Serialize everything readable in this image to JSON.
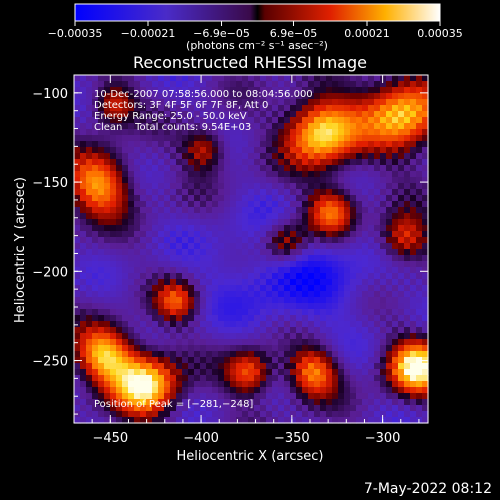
{
  "chart_data": {
    "type": "heatmap",
    "title": "Reconstructed RHESSI Image",
    "xlabel": "Heliocentric X (arcsec)",
    "ylabel": "Heliocentric Y (arcsec)",
    "xlim": [
      -470,
      -275
    ],
    "ylim": [
      -285,
      -90
    ],
    "x_ticks": [
      -450,
      -400,
      -350,
      -300
    ],
    "x_tick_labels": [
      "−450",
      "−400",
      "−350",
      "−300"
    ],
    "y_ticks": [
      -100,
      -150,
      -200,
      -250
    ],
    "y_tick_labels": [
      "−100",
      "−150",
      "−200",
      "−250"
    ],
    "colorbar": {
      "min": -0.00035,
      "max": 0.00035,
      "ticks": [
        -0.00035,
        -0.00021,
        -6.9e-05,
        6.9e-05,
        0.00021,
        0.00035
      ],
      "tick_labels": [
        "−0.00035",
        "−0.00021",
        "−6.9e−05",
        "6.9e−05",
        "0.00021",
        "0.00035"
      ],
      "unit_label": "(photons cm⁻² s⁻¹ asec⁻²)"
    },
    "annotations": [
      "10-Dec-2007 07:58:56.000 to 08:04:56.000",
      "Detectors: 3F 4F 5F 6F 7F 8F, Att 0",
      "Energy Range: 25.0 - 50.0 keV",
      "Clean    Total counts: 9.54E+03"
    ],
    "peak_label": "Position of Peak = [−281,−248]",
    "peak_position": [
      -281,
      -248
    ],
    "bright_regions": [
      {
        "x": -335,
        "y": -120,
        "rel": 1.0,
        "r": 20
      },
      {
        "x": -432,
        "y": -262,
        "rel": 1.0,
        "r": 18
      },
      {
        "x": -283,
        "y": -252,
        "rel": 1.0,
        "r": 16
      },
      {
        "x": -290,
        "y": -110,
        "rel": 0.85,
        "r": 22
      },
      {
        "x": -455,
        "y": -245,
        "rel": 0.8,
        "r": 16
      },
      {
        "x": -458,
        "y": -150,
        "rel": 0.72,
        "r": 18
      },
      {
        "x": -340,
        "y": -255,
        "rel": 0.65,
        "r": 14
      },
      {
        "x": -375,
        "y": -255,
        "rel": 0.6,
        "r": 13
      },
      {
        "x": -330,
        "y": -165,
        "rel": 0.62,
        "r": 14
      },
      {
        "x": -355,
        "y": -182,
        "rel": 0.5,
        "r": 12
      },
      {
        "x": -290,
        "y": -180,
        "rel": 0.55,
        "r": 14
      },
      {
        "x": -415,
        "y": -215,
        "rel": 0.45,
        "r": 12
      },
      {
        "x": -400,
        "y": -130,
        "rel": 0.4,
        "r": 12
      },
      {
        "x": -450,
        "y": -105,
        "rel": 0.45,
        "r": 12
      }
    ],
    "grid": false
  },
  "footer_timestamp": "7-May-2022 08:12"
}
